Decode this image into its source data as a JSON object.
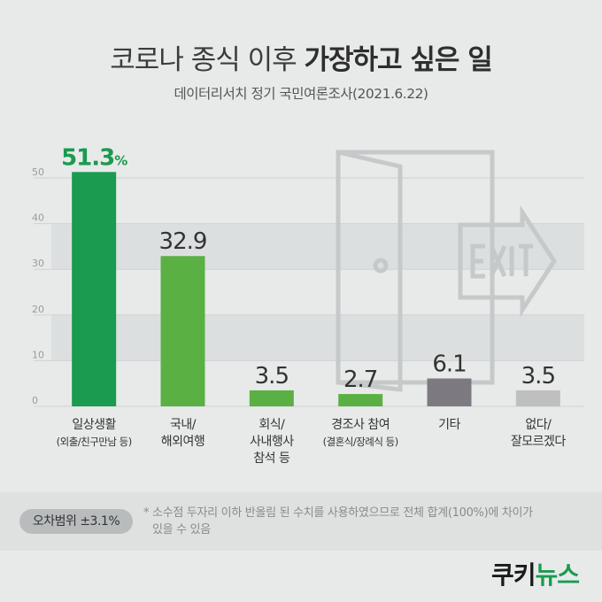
{
  "header": {
    "title_normal": "코로나 종식 이후 ",
    "title_bold": "가장하고 싶은 일",
    "subtitle": "데이터리서치 정기 국민여론조사(2021.6.22)"
  },
  "chart_data": {
    "type": "bar",
    "categories": [
      [
        "일상생활",
        "(외출/친구만남 등)"
      ],
      [
        "국내/",
        "해외여행"
      ],
      [
        "회식/",
        "사내행사",
        "참석 등"
      ],
      [
        "경조사 참여",
        "(결혼식/장례식 등)"
      ],
      [
        "기타"
      ],
      [
        "없다/",
        "잘모르겠다"
      ]
    ],
    "values": [
      51.3,
      32.9,
      3.5,
      2.7,
      6.1,
      3.5
    ],
    "value_labels": [
      "51.3",
      "32.9",
      "3.5",
      "2.7",
      "6.1",
      "3.5"
    ],
    "first_value_suffix": "%",
    "yticks": [
      "0",
      "10",
      "20",
      "30",
      "40",
      "50"
    ],
    "ylim": [
      0,
      50
    ],
    "grid": true,
    "colors": [
      "#1a9b4f",
      "#5bb043",
      "#5bb043",
      "#5bb043",
      "#7c7a80",
      "#bfbfbf"
    ],
    "value_label_colors": [
      "#1a9b4f",
      "#333333",
      "#333333",
      "#333333",
      "#333333",
      "#333333"
    ]
  },
  "footer": {
    "margin_of_error": "오차범위 ±3.1%",
    "note_line1": "* 소수점 두자리 이하 반올림 된 수치를 사용하였으므로 전체 합계(100%)에 차이가",
    "note_line2": "있을 수 있음"
  },
  "logo": {
    "part1": "쿠키",
    "part2": "뉴스"
  }
}
